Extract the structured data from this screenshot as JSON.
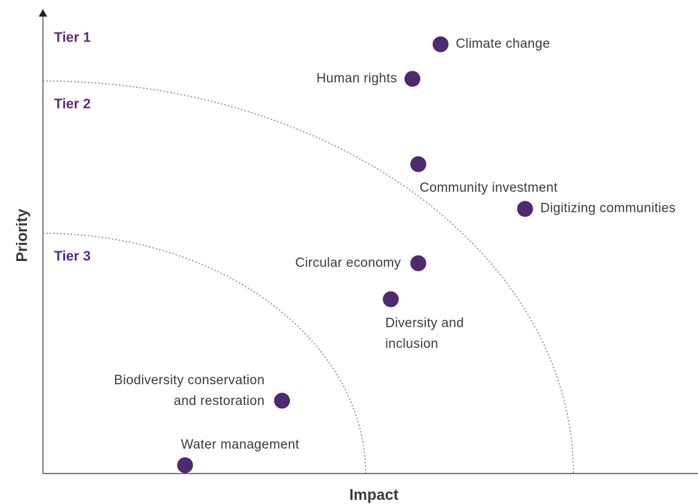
{
  "chart_data": {
    "type": "scatter",
    "x_label": "Impact",
    "y_label": "Priority",
    "tiers": [
      "Tier 1",
      "Tier 2",
      "Tier 3"
    ],
    "labels": [
      [
        "Climate change"
      ],
      [
        "Human rights"
      ],
      [
        "Community investment"
      ],
      [
        "Digitizing communities"
      ],
      [
        "Circular economy"
      ],
      [
        "Diversity and",
        "inclusion"
      ],
      [
        "Biodiversity conservation",
        "and restoration"
      ],
      [
        "Water management"
      ]
    ],
    "x": [
      60.7,
      56.4,
      57.3,
      73.6,
      57.3,
      53.1,
      36.5,
      21.7
    ],
    "values": [
      93.1,
      85.6,
      67.1,
      57.4,
      45.6,
      37.8,
      15.8,
      1.8
    ],
    "xlim": [
      0,
      100
    ],
    "ylim": [
      0,
      100
    ],
    "color": "#4e2a6e"
  }
}
